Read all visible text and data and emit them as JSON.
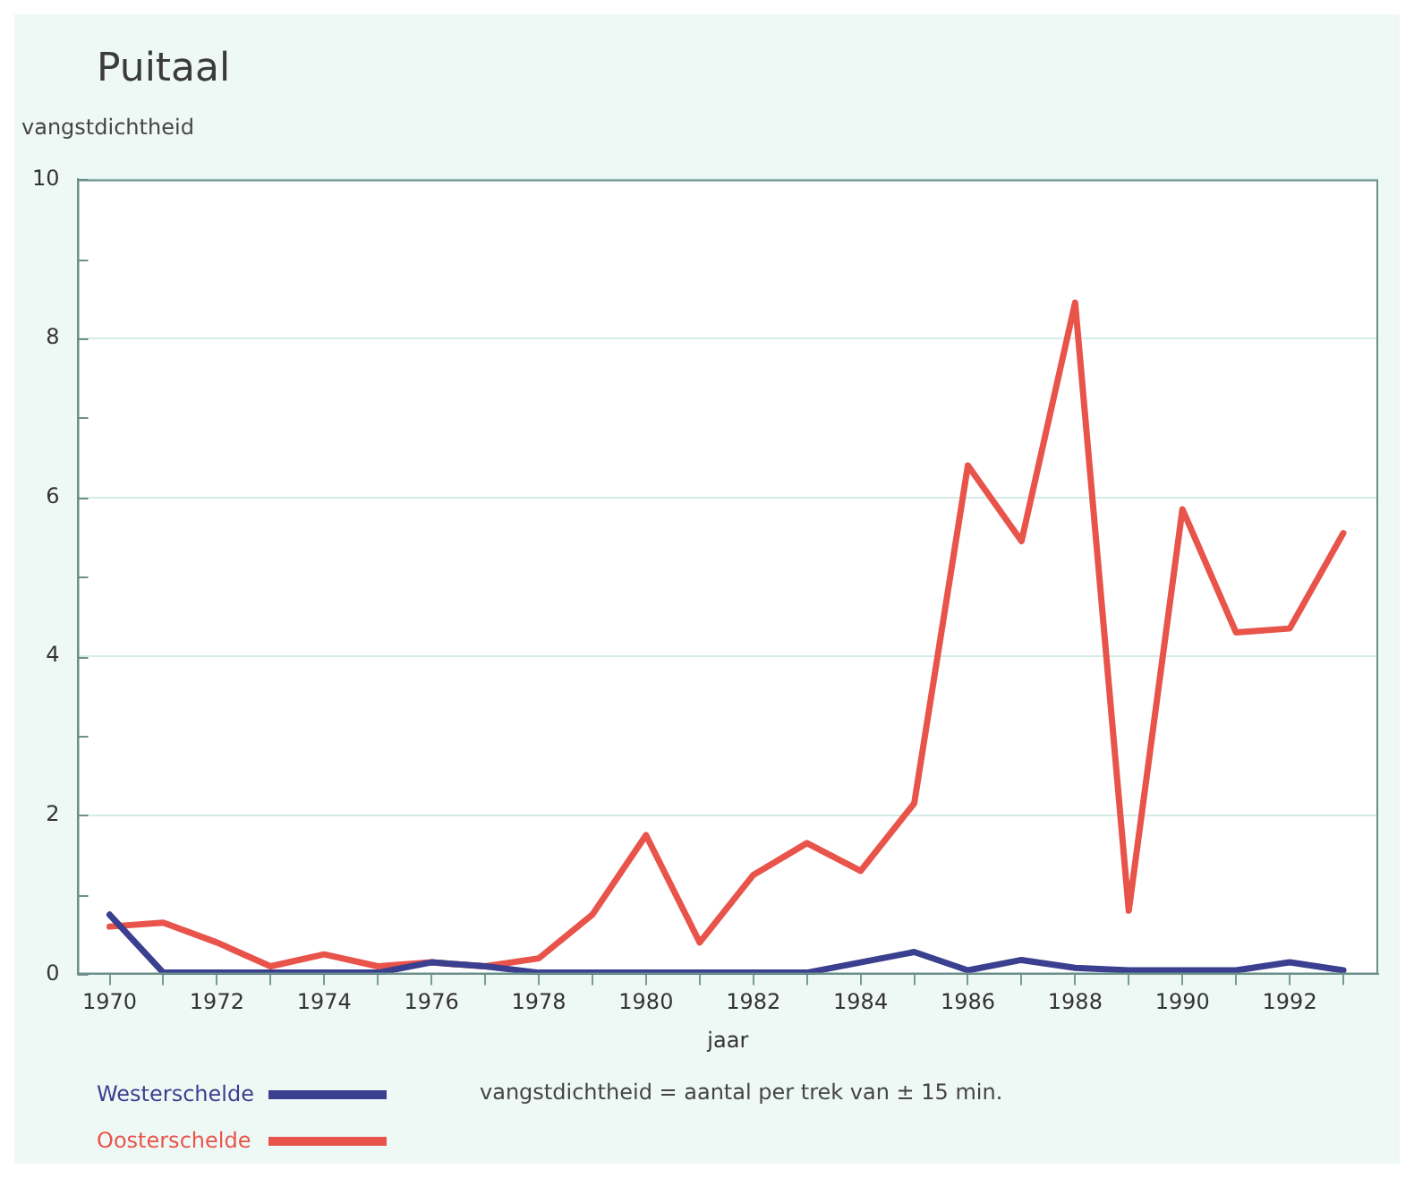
{
  "chart_data": {
    "type": "line",
    "title": "Puitaal",
    "ylabel": "vangstdichtheid",
    "xlabel": "jaar",
    "annotations": [
      "vangstdichtheid = aantal per trek van ± 15 min."
    ],
    "x": [
      1970,
      1971,
      1972,
      1973,
      1974,
      1975,
      1976,
      1977,
      1978,
      1979,
      1980,
      1981,
      1982,
      1983,
      1984,
      1985,
      1986,
      1987,
      1988,
      1989,
      1990,
      1991,
      1992,
      1993
    ],
    "series": [
      {
        "name": "Westerschelde",
        "color": "#3a3f8f",
        "values": [
          0.75,
          0.02,
          0.02,
          0.02,
          0.02,
          0.02,
          0.15,
          0.1,
          0.02,
          0.02,
          0.02,
          0.02,
          0.02,
          0.02,
          0.15,
          0.28,
          0.05,
          0.18,
          0.08,
          0.05,
          0.05,
          0.05,
          0.15,
          0.05
        ]
      },
      {
        "name": "Oosterschelde",
        "color": "#e8534a",
        "values": [
          0.6,
          0.65,
          0.4,
          0.1,
          0.25,
          0.1,
          0.15,
          0.1,
          0.2,
          0.75,
          1.75,
          0.4,
          1.25,
          1.65,
          1.3,
          2.15,
          6.4,
          5.45,
          8.45,
          0.8,
          5.85,
          4.3,
          4.35,
          5.55
        ]
      }
    ],
    "xlim": [
      1969.4,
      1993.65
    ],
    "xticks": [
      1970,
      {
        "value": 1971,
        "label": null
      },
      1972,
      {
        "value": 1973,
        "label": null
      },
      1974,
      {
        "value": 1975,
        "label": null
      },
      1976,
      {
        "value": 1977,
        "label": null
      },
      1978,
      {
        "value": 1979,
        "label": null
      },
      1980,
      {
        "value": 1981,
        "label": null
      },
      1982,
      {
        "value": 1983,
        "label": null
      },
      1984,
      {
        "value": 1985,
        "label": null
      },
      1986,
      {
        "value": 1987,
        "label": null
      },
      1988,
      {
        "value": 1989,
        "label": null
      },
      1990,
      {
        "value": 1991,
        "label": null
      },
      1992,
      {
        "value": 1993,
        "label": null
      }
    ],
    "ylim": [
      0,
      10
    ],
    "yticks": [
      0,
      {
        "value": 1,
        "label": null
      },
      2,
      {
        "value": 3,
        "label": null
      },
      4,
      {
        "value": 5,
        "label": null
      },
      6,
      {
        "value": 7,
        "label": null
      },
      8,
      {
        "value": 9,
        "label": null
      },
      10
    ],
    "grid": "y",
    "legend": "bottom left",
    "marker": "none",
    "line_style": "solid"
  }
}
